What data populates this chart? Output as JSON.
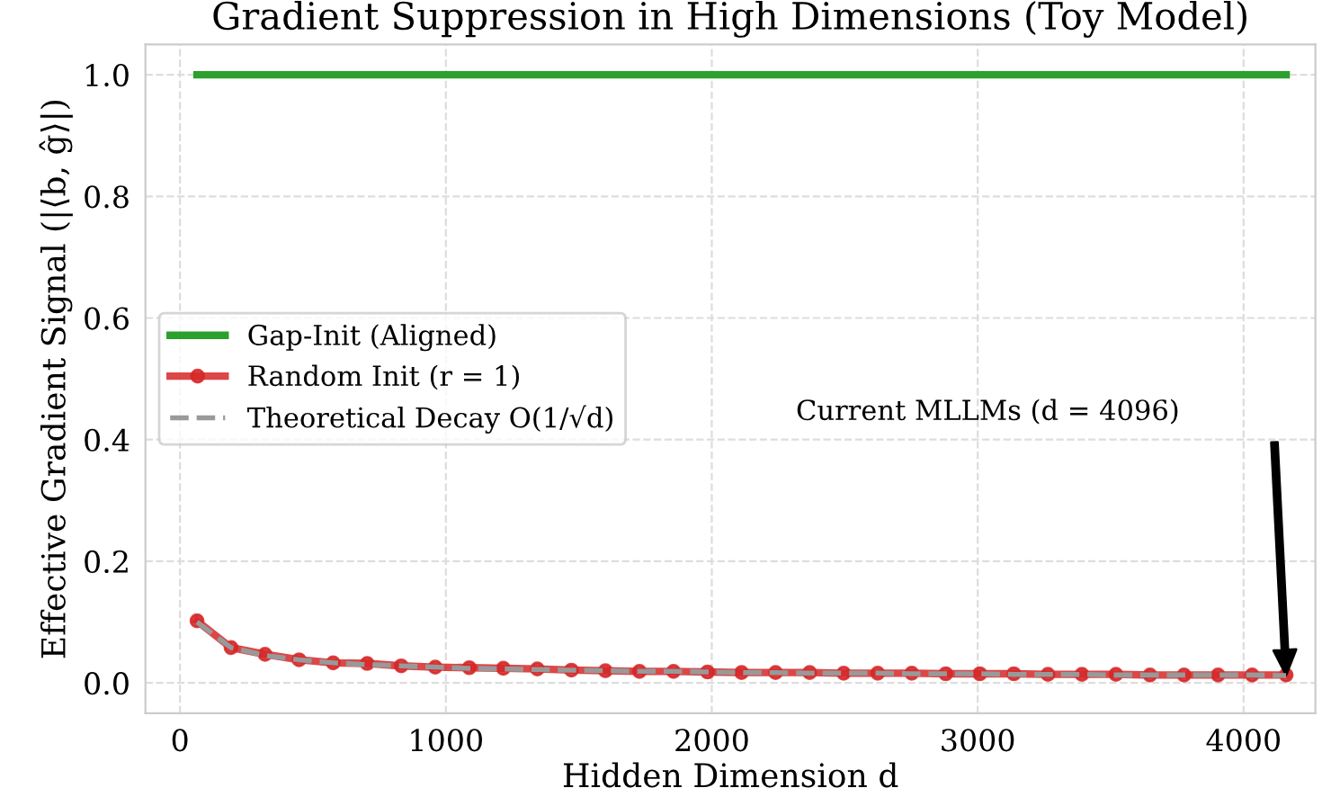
{
  "chart_data": {
    "type": "line",
    "title": "Gradient Suppression in High Dimensions (Toy Model)",
    "xlabel": "Hidden Dimension d",
    "ylabel": "Effective Gradient Signal (|⟨b, ĝ⟩|)",
    "x": [
      64,
      192,
      320,
      448,
      576,
      704,
      832,
      960,
      1088,
      1216,
      1344,
      1472,
      1600,
      1728,
      1856,
      1984,
      2112,
      2240,
      2368,
      2496,
      2624,
      2752,
      2880,
      3008,
      3136,
      3264,
      3392,
      3520,
      3648,
      3776,
      3904,
      4032,
      4160
    ],
    "series": [
      {
        "name": "Gap-Init (Aligned)",
        "color": "#2ca02c",
        "marker": "none",
        "line_style": "solid",
        "values": [
          1,
          1,
          1,
          1,
          1,
          1,
          1,
          1,
          1,
          1,
          1,
          1,
          1,
          1,
          1,
          1,
          1,
          1,
          1,
          1,
          1,
          1,
          1,
          1,
          1,
          1,
          1,
          1,
          1,
          1,
          1,
          1,
          1
        ]
      },
      {
        "name": "Random Init (r = 1)",
        "color": "#d62728",
        "marker": "circle",
        "line_style": "solid",
        "values": [
          0.102,
          0.058,
          0.047,
          0.038,
          0.033,
          0.032,
          0.028,
          0.026,
          0.025,
          0.024,
          0.023,
          0.021,
          0.02,
          0.019,
          0.019,
          0.018,
          0.017,
          0.017,
          0.017,
          0.016,
          0.016,
          0.016,
          0.015,
          0.015,
          0.015,
          0.014,
          0.014,
          0.014,
          0.013,
          0.013,
          0.013,
          0.013,
          0.013
        ]
      },
      {
        "name": "Theoretical Decay O(1/√d)",
        "color": "#999999",
        "marker": "none",
        "line_style": "dashed",
        "values": [
          0.1,
          0.058,
          0.045,
          0.038,
          0.033,
          0.03,
          0.028,
          0.026,
          0.024,
          0.023,
          0.022,
          0.021,
          0.02,
          0.019,
          0.019,
          0.018,
          0.017,
          0.017,
          0.016,
          0.016,
          0.016,
          0.015,
          0.015,
          0.015,
          0.014,
          0.014,
          0.014,
          0.013,
          0.013,
          0.013,
          0.013,
          0.013,
          0.012
        ]
      }
    ],
    "xlim": [
      -130,
      4270
    ],
    "xticks": [
      0,
      1000,
      2000,
      3000,
      4000
    ],
    "ylim": [
      -0.05,
      1.05
    ],
    "yticks": [
      {
        "value": 0,
        "label": "0.0"
      },
      {
        "value": 0.2,
        "label": "0.2"
      },
      {
        "value": 0.4,
        "label": "0.4"
      },
      {
        "value": 0.6,
        "label": "0.6"
      },
      {
        "value": 0.8,
        "label": "0.8"
      },
      {
        "value": 1.0,
        "label": "1.0"
      }
    ],
    "annotations": [
      "Current MLLMs (d = 4096)"
    ],
    "grid": true,
    "legend": "center left"
  }
}
